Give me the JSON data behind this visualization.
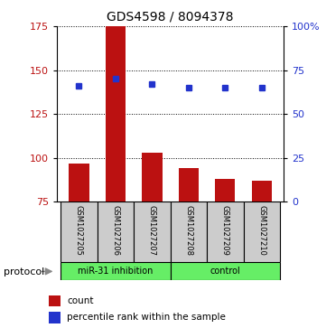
{
  "title": "GDS4598 / 8094378",
  "samples": [
    "GSM1027205",
    "GSM1027206",
    "GSM1027207",
    "GSM1027208",
    "GSM1027209",
    "GSM1027210"
  ],
  "counts": [
    97,
    175,
    103,
    94,
    88,
    87
  ],
  "percentile_ranks": [
    66,
    70,
    67,
    65,
    65,
    65
  ],
  "ylim_left": [
    75,
    175
  ],
  "ylim_right": [
    0,
    100
  ],
  "y_ticks_left": [
    75,
    100,
    125,
    150,
    175
  ],
  "y_ticks_right": [
    0,
    25,
    50,
    75,
    100
  ],
  "bar_color": "#bb1111",
  "dot_color": "#2233cc",
  "bar_bottom": 75,
  "group_miR_label": "miR-31 inhibition",
  "group_ctrl_label": "control",
  "protocol_label": "protocol",
  "legend_count_label": "count",
  "legend_pct_label": "percentile rank within the sample",
  "green_color": "#66EE66",
  "gray_color": "#cccccc",
  "n_miR": 3,
  "n_ctrl": 3
}
